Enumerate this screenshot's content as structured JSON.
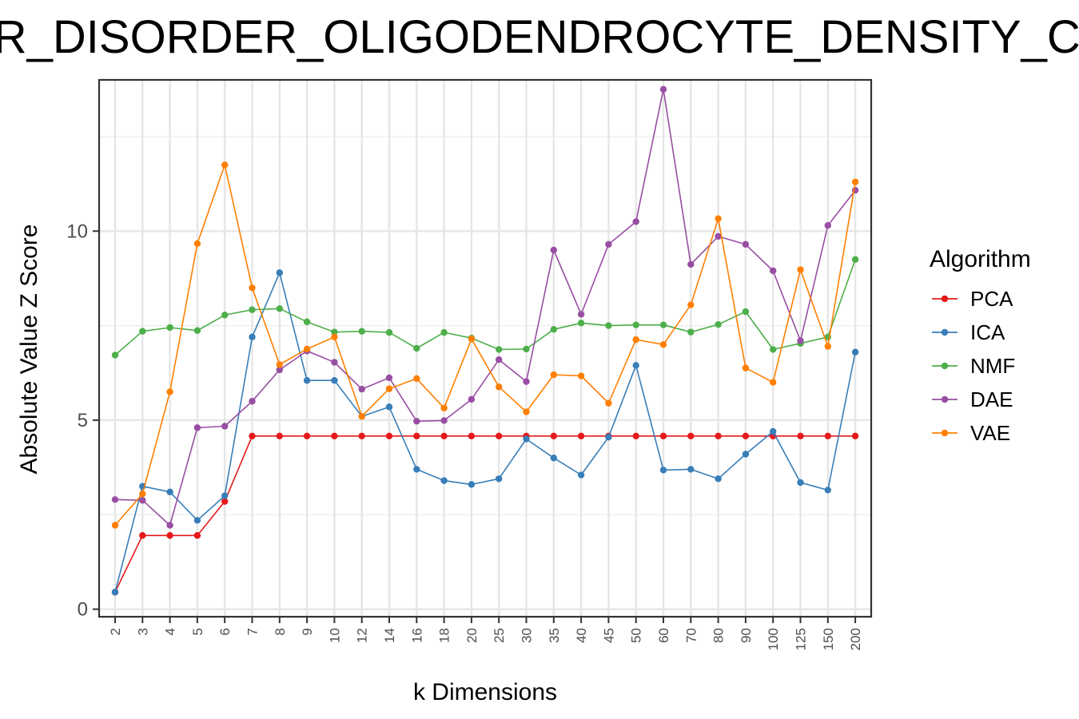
{
  "chart_data": {
    "type": "line",
    "title": "AR_DISORDER_OLIGODENDROCYTE_DENSITY_CO",
    "xlabel": "k Dimensions",
    "ylabel": "Absolute Value Z Score",
    "categories": [
      "2",
      "3",
      "4",
      "5",
      "6",
      "7",
      "8",
      "9",
      "10",
      "12",
      "14",
      "16",
      "18",
      "20",
      "25",
      "30",
      "35",
      "40",
      "45",
      "50",
      "60",
      "70",
      "80",
      "90",
      "100",
      "125",
      "150",
      "200"
    ],
    "y_ticks": [
      "0",
      "5",
      "10"
    ],
    "ylim": [
      -0.2,
      14.0
    ],
    "grid": true,
    "legend": {
      "title": "Algorithm",
      "position": "right"
    },
    "series": [
      {
        "name": "PCA",
        "color": "#e41a1c",
        "values": [
          0.45,
          1.95,
          1.95,
          1.95,
          2.85,
          4.58,
          4.58,
          4.58,
          4.58,
          4.58,
          4.58,
          4.58,
          4.58,
          4.58,
          4.58,
          4.58,
          4.58,
          4.58,
          4.58,
          4.58,
          4.58,
          4.58,
          4.58,
          4.58,
          4.58,
          4.58,
          4.58,
          4.58
        ]
      },
      {
        "name": "ICA",
        "color": "#377eb8",
        "values": [
          0.45,
          3.25,
          3.1,
          2.35,
          3.0,
          7.2,
          8.9,
          6.05,
          6.05,
          5.1,
          5.35,
          3.7,
          3.4,
          3.3,
          3.45,
          4.5,
          4.0,
          3.55,
          4.55,
          6.45,
          3.68,
          3.7,
          3.45,
          4.1,
          4.7,
          3.35,
          3.15,
          6.8
        ]
      },
      {
        "name": "NMF",
        "color": "#4daf4a",
        "values": [
          6.72,
          7.35,
          7.45,
          7.37,
          7.78,
          7.92,
          7.95,
          7.6,
          7.33,
          7.35,
          7.32,
          6.9,
          7.32,
          7.17,
          6.87,
          6.88,
          7.4,
          7.57,
          7.5,
          7.52,
          7.52,
          7.33,
          7.53,
          7.87,
          6.87,
          7.03,
          7.2,
          9.25
        ]
      },
      {
        "name": "DAE",
        "color": "#984ea3",
        "values": [
          2.9,
          2.88,
          2.22,
          4.8,
          4.84,
          5.5,
          6.33,
          6.83,
          6.53,
          5.82,
          6.12,
          4.97,
          4.99,
          5.55,
          6.6,
          6.02,
          9.5,
          7.8,
          9.65,
          10.25,
          13.75,
          9.12,
          9.86,
          9.65,
          8.95,
          7.1,
          10.15,
          11.08
        ]
      },
      {
        "name": "VAE",
        "color": "#ff7f00",
        "values": [
          2.22,
          3.05,
          5.75,
          9.67,
          11.75,
          8.5,
          6.47,
          6.88,
          7.2,
          5.1,
          5.83,
          6.1,
          5.32,
          7.15,
          5.88,
          5.22,
          6.2,
          6.17,
          5.45,
          7.13,
          7.0,
          8.05,
          10.33,
          6.38,
          6.0,
          8.98,
          6.95,
          11.3
        ]
      }
    ]
  }
}
